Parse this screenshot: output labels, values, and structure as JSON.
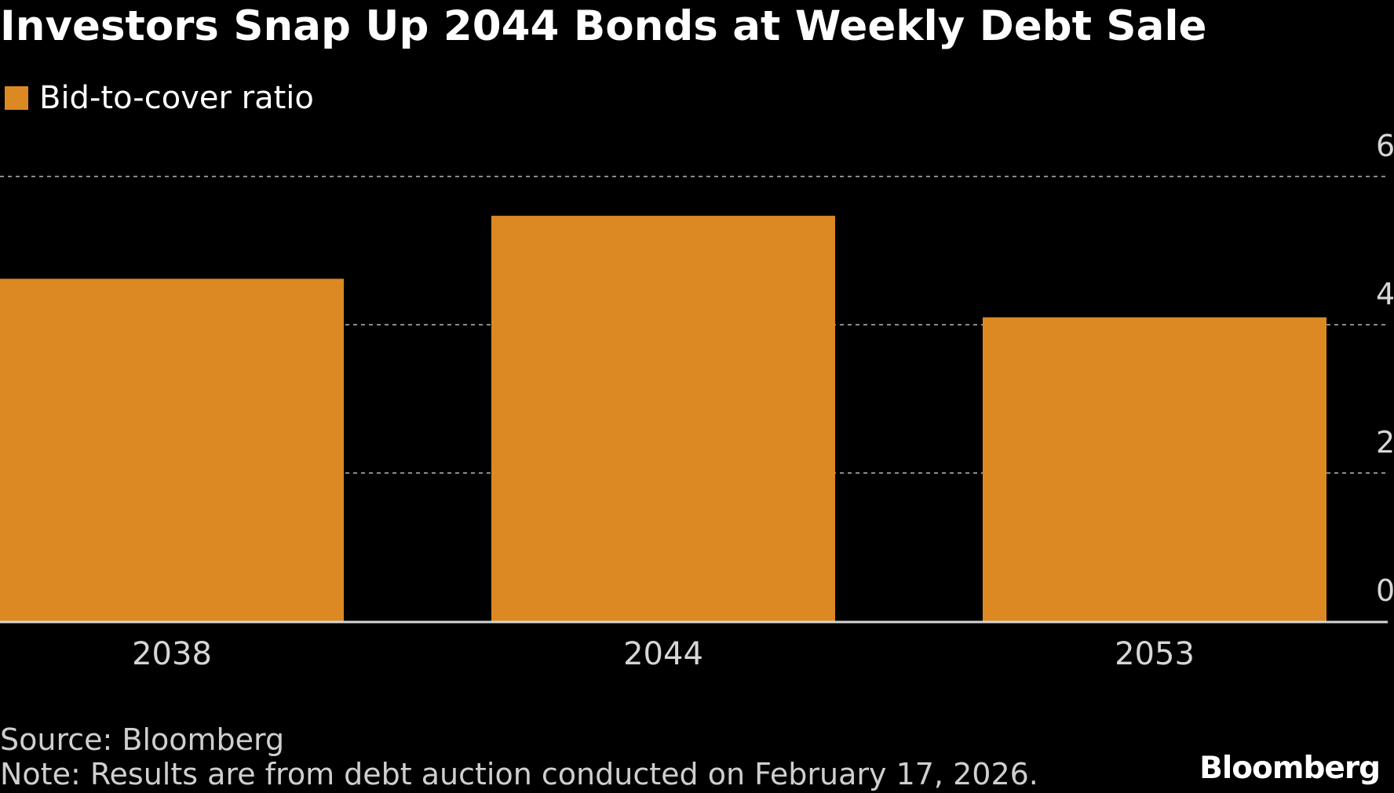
{
  "colors": {
    "background": "#000000",
    "bar": "#dc8923",
    "gridline": "#8a8a8a",
    "baseline": "#d6d6d6",
    "text": "#ffffff",
    "footer_text": "#cfcfcf"
  },
  "chart_data": {
    "type": "bar",
    "title": "Investors Snap Up 2044 Bonds at Weekly Debt Sale",
    "legend": [
      "Bid-to-cover ratio"
    ],
    "legend_placement": "top-left",
    "categories": [
      "2038",
      "2044",
      "2053"
    ],
    "series": [
      {
        "name": "Bid-to-cover ratio",
        "values": [
          4.62,
          5.47,
          4.1
        ]
      }
    ],
    "ylim": [
      0,
      6
    ],
    "yticks": [
      0,
      2,
      4,
      6
    ],
    "y_axis_side": "right",
    "grid": true
  },
  "footer": {
    "source": "Source: Bloomberg",
    "note": "Note: Results are from debt auction conducted on February 17, 2026.",
    "brand": "Bloomberg"
  }
}
